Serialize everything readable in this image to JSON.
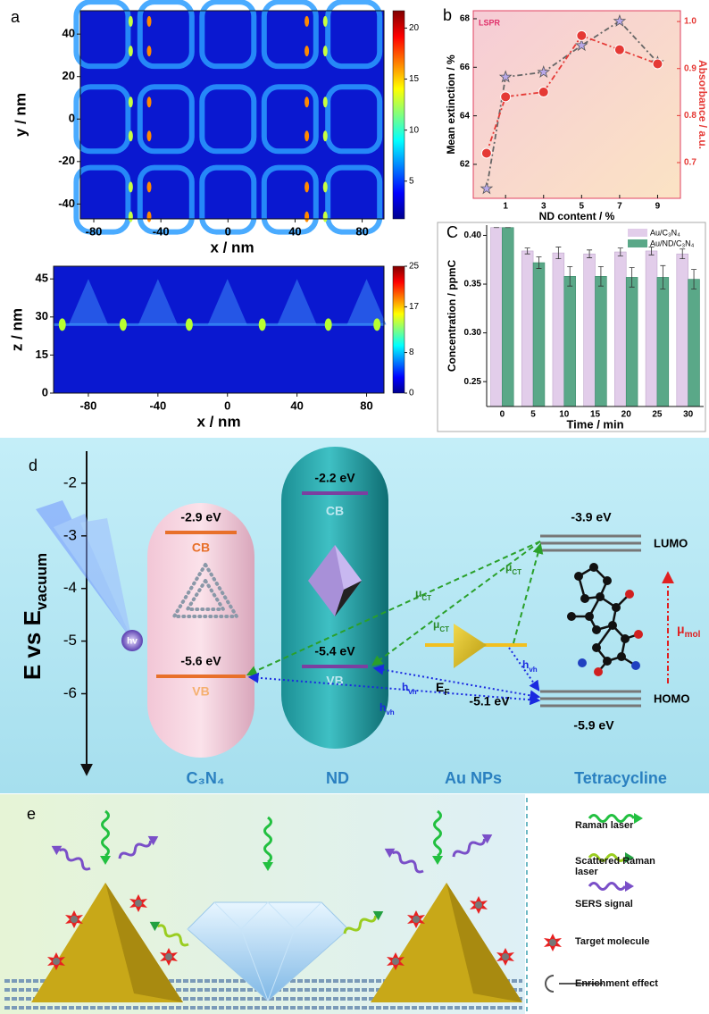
{
  "panels": {
    "a": "a",
    "b": "b",
    "c": "C",
    "d": "d",
    "e": "e"
  },
  "chart_data": [
    {
      "type": "heatmap",
      "xlabel": "x / nm",
      "ylabel": "y / nm",
      "xlim": [
        -88,
        93
      ],
      "xticks": [
        -80,
        -40,
        0,
        40,
        80
      ],
      "ylim": [
        -47,
        51
      ],
      "yticks": [
        -40,
        -20,
        0,
        20,
        40
      ],
      "clim": [
        1.3,
        21.7
      ],
      "cticks": [
        5,
        10,
        15,
        20
      ]
    },
    {
      "type": "heatmap",
      "xlabel": "x / nm",
      "ylabel": "z / nm",
      "xlim": [
        -100,
        90
      ],
      "xticks": [
        -80,
        -40,
        0,
        40,
        80
      ],
      "ylim": [
        0,
        50
      ],
      "yticks": [
        0,
        15,
        30,
        45
      ],
      "clim": [
        0,
        25
      ],
      "cticks": [
        0,
        8,
        17,
        25
      ]
    },
    {
      "type": "line",
      "annotation": "LSPR",
      "xlabel": "ND content / %",
      "ylabel": "Mean extinction / %",
      "y2label": "Absorbance / a.u.",
      "x": [
        0,
        1,
        3,
        5,
        7,
        9
      ],
      "xlim": [
        -0.7,
        10.2
      ],
      "xticks": [
        1,
        3,
        5,
        7,
        9
      ],
      "ylim": [
        60.6,
        68.33
      ],
      "yticks": [
        62,
        64,
        66,
        68
      ],
      "y2lim": [
        0.624,
        1.023
      ],
      "y2ticks": [
        0.7,
        0.8,
        0.9,
        {
          "value": 1.0,
          "label": "1.0"
        }
      ],
      "series": [
        {
          "color": "#666666",
          "marker": "star",
          "values": [
            61.0,
            65.6,
            65.8,
            66.9,
            67.9,
            66.2
          ]
        },
        {
          "color": "#e53935",
          "marker": "circle",
          "axis": "y2",
          "values": [
            0.72,
            0.84,
            0.85,
            0.97,
            0.94,
            0.91
          ]
        }
      ]
    },
    {
      "type": "bar",
      "xlabel": "Time / min",
      "ylabel": "Concentration / ppmC",
      "categories": [
        "0",
        "5",
        "10",
        "15",
        "20",
        "25",
        "30"
      ],
      "ylim": [
        0.2245,
        0.4105
      ],
      "yticks": [
        0.25,
        {
          "value": 0.3,
          "label": "0.30"
        },
        0.35,
        {
          "value": 0.4,
          "label": "0.40"
        }
      ],
      "series": [
        {
          "name": "Au/C₃N₄",
          "color": "#e2cdea",
          "values": [
            0.408,
            0.384,
            0.382,
            0.381,
            0.383,
            0.384,
            0.381
          ],
          "errors": [
            0,
            0.003,
            0.006,
            0.004,
            0.004,
            0.004,
            0.005
          ]
        },
        {
          "name": "Au/ND/C₃N₄",
          "color": "#5aa888",
          "values": [
            0.408,
            0.372,
            0.358,
            0.358,
            0.357,
            0.357,
            0.355
          ],
          "errors": [
            0,
            0.006,
            0.01,
            0.01,
            0.01,
            0.012,
            0.01
          ]
        }
      ]
    }
  ],
  "diagram": {
    "ylabel": {
      "main": "E vs E",
      "sub": "vacuum"
    },
    "yticks": [
      -2,
      -3,
      -4,
      -5,
      -6
    ],
    "ylim": [
      -7.52,
      -1.39
    ],
    "c3n4": {
      "cb": "-2.9 eV",
      "cb_label": "CB",
      "vb": "-5.6 eV",
      "vb_label": "VB",
      "name": "C₃N₄"
    },
    "nd": {
      "cb": "-2.2 eV",
      "cb_label": "CB",
      "vb": "-5.4 eV",
      "vb_label": "VB",
      "name": "ND"
    },
    "au": {
      "ef": {
        "main": "E",
        "sub": "F"
      },
      "level": "-5.1 eV",
      "name": "Au NPs"
    },
    "tc": {
      "lumo": "-3.9 eV",
      "lumo_label": "LUMO",
      "homo": "-5.9 eV",
      "homo_label": "HOMO",
      "mol": {
        "main": "μ",
        "sub": "mol"
      },
      "name": "Tetracycline"
    },
    "hv": "hv",
    "mu_ct": [
      {
        "main": "μ",
        "sub": "CT"
      },
      {
        "main": "μ",
        "sub": "CT"
      },
      {
        "main": "μ",
        "sub": "CT"
      }
    ],
    "h_vh": [
      {
        "main": "h",
        "sub": "vh"
      },
      {
        "main": "h",
        "sub": "vh"
      },
      {
        "main": "h",
        "sub": "vh"
      }
    ]
  },
  "legend_e": [
    "Raman laser",
    "Scattered Raman laser",
    "SERS signal",
    "Target molecule",
    "Enrichment effect"
  ]
}
